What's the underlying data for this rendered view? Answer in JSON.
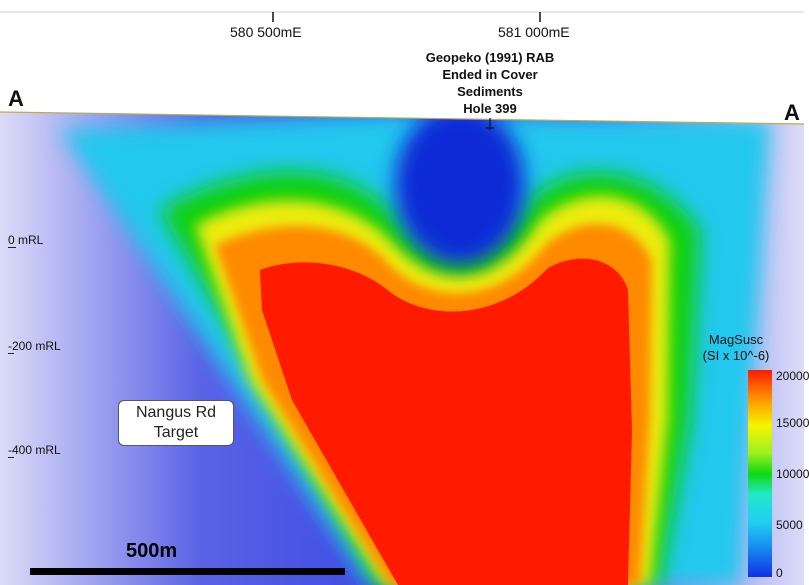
{
  "section": {
    "left_label": "A",
    "right_label": "A",
    "eastings": [
      "580 500mE",
      "581 000mE"
    ],
    "rl_labels": [
      "0 mRL",
      "-200 mRL",
      "-400 mRL"
    ],
    "hole_label": [
      "Geopeko (1991) RAB",
      "Ended in Cover",
      "Sediments",
      "Hole 399"
    ],
    "target_label": [
      "Nangus Rd",
      "Target"
    ]
  },
  "legend": {
    "title": "MagSusc",
    "units": "(SI x 10^-6)",
    "ticks": [
      "20000",
      "15000",
      "10000",
      "5000",
      "0"
    ],
    "range": [
      0,
      20000
    ],
    "colors": [
      "#1030e8",
      "#1890f0",
      "#22d0f0",
      "#10d810",
      "#f5f500",
      "#ff8c00",
      "#ff1a00"
    ]
  },
  "scalebar": {
    "label": "500m"
  }
}
